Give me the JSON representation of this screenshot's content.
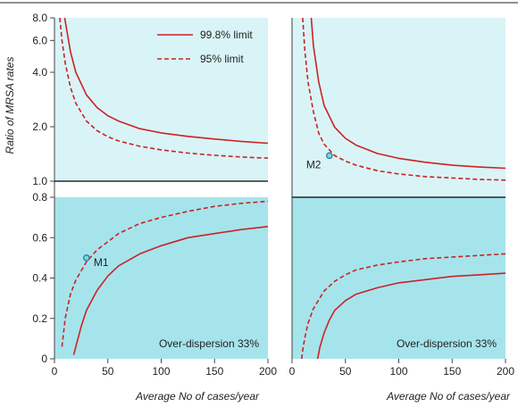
{
  "chart_data": [
    {
      "type": "line",
      "panel": "left",
      "ylabel": "Ratio of MRSA rates",
      "xlabel": "Average No of cases/year",
      "xlim": [
        0,
        200
      ],
      "ylim_upper": [
        1.0,
        8.0
      ],
      "ylim_lower": [
        0,
        0.8
      ],
      "x_ticks": [
        "0",
        "50",
        "100",
        "150",
        "200"
      ],
      "y_ticks_upper": [
        "1.0",
        "2.0",
        "4.0",
        "6.0",
        "8.0"
      ],
      "y_ticks_lower": [
        "0",
        "0.2",
        "0.4",
        "0.6",
        "0.8"
      ],
      "legend": {
        "placement": "top",
        "items": [
          "99.8% limit",
          "95% limit"
        ]
      },
      "reference_line": 1.0,
      "annotation": "Over-dispersion 33%",
      "series": [
        {
          "name": "99.8% limit",
          "style": "solid",
          "color": "#cc2222",
          "upper": {
            "x": [
              9.5,
              12,
              15,
              20,
              30,
              40,
              50,
              60,
              80,
              100,
              125,
              150,
              175,
              200
            ],
            "y": [
              8.0,
              6.6,
              5.2,
              4.0,
              3.0,
              2.55,
              2.3,
              2.15,
              1.95,
              1.85,
              1.77,
              1.71,
              1.66,
              1.62
            ]
          },
          "lower": {
            "x": [
              18,
              20,
              25,
              30,
              40,
              50,
              60,
              80,
              100,
              125,
              150,
              175,
              200
            ],
            "y": [
              0.02,
              0.06,
              0.16,
              0.24,
              0.34,
              0.41,
              0.46,
              0.52,
              0.56,
              0.6,
              0.62,
              0.64,
              0.655
            ]
          }
        },
        {
          "name": "95% limit",
          "style": "dashed",
          "color": "#cc2222",
          "upper": {
            "x": [
              5,
              7,
              10,
              15,
              20,
              30,
              40,
              50,
              60,
              80,
              100,
              125,
              150,
              175,
              200
            ],
            "y": [
              8.0,
              6.0,
              4.5,
              3.3,
              2.7,
              2.15,
              1.9,
              1.76,
              1.67,
              1.56,
              1.49,
              1.43,
              1.39,
              1.36,
              1.34
            ]
          },
          "lower": {
            "x": [
              7,
              10,
              15,
              20,
              30,
              40,
              50,
              60,
              80,
              100,
              125,
              150,
              175,
              200
            ],
            "y": [
              0.06,
              0.2,
              0.32,
              0.39,
              0.48,
              0.54,
              0.58,
              0.62,
              0.67,
              0.7,
              0.73,
              0.755,
              0.77,
              0.78
            ]
          }
        }
      ],
      "points": [
        {
          "label": "M1",
          "x": 30,
          "y": 0.5
        }
      ]
    },
    {
      "type": "line",
      "panel": "right",
      "xlabel": "Average No of cases/year",
      "xlim": [
        0,
        200
      ],
      "x_ticks": [
        "0",
        "50",
        "100",
        "150",
        "200"
      ],
      "reference_line": 1.0,
      "annotation": "Over-dispersion 33%",
      "series": [
        {
          "name": "99.8% limit",
          "style": "solid",
          "color": "#cc2222",
          "upper": {
            "x": [
              18,
              20,
              25,
              30,
              40,
              50,
              60,
              80,
              100,
              125,
              150,
              175,
              200
            ],
            "y": [
              8.0,
              5.8,
              3.8,
              2.9,
              2.25,
              1.98,
              1.83,
              1.66,
              1.57,
              1.5,
              1.45,
              1.42,
              1.4
            ]
          },
          "lower": {
            "x": [
              24,
              26,
              30,
              35,
              40,
              50,
              60,
              80,
              100,
              125,
              150,
              175,
              200
            ],
            "y": [
              0.0,
              0.07,
              0.16,
              0.24,
              0.3,
              0.36,
              0.4,
              0.44,
              0.47,
              0.49,
              0.51,
              0.52,
              0.53
            ]
          }
        },
        {
          "name": "95% limit",
          "style": "dashed",
          "color": "#cc2222",
          "upper": {
            "x": [
              10,
              12,
              15,
              20,
              25,
              30,
              40,
              50,
              60,
              80,
              100,
              125,
              150,
              175,
              200
            ],
            "y": [
              8.0,
              5.5,
              3.8,
              2.7,
              2.1,
              1.85,
              1.62,
              1.52,
              1.45,
              1.36,
              1.31,
              1.27,
              1.25,
              1.23,
              1.22
            ]
          },
          "lower": {
            "x": [
              9,
              10,
              12,
              15,
              20,
              30,
              40,
              50,
              60,
              80,
              100,
              125,
              150,
              175,
              200
            ],
            "y": [
              0.0,
              0.05,
              0.13,
              0.22,
              0.31,
              0.42,
              0.48,
              0.52,
              0.55,
              0.58,
              0.6,
              0.62,
              0.63,
              0.64,
              0.65
            ]
          }
        }
      ],
      "points": [
        {
          "label": "M2",
          "x": 35,
          "y": 1.62
        }
      ]
    }
  ]
}
